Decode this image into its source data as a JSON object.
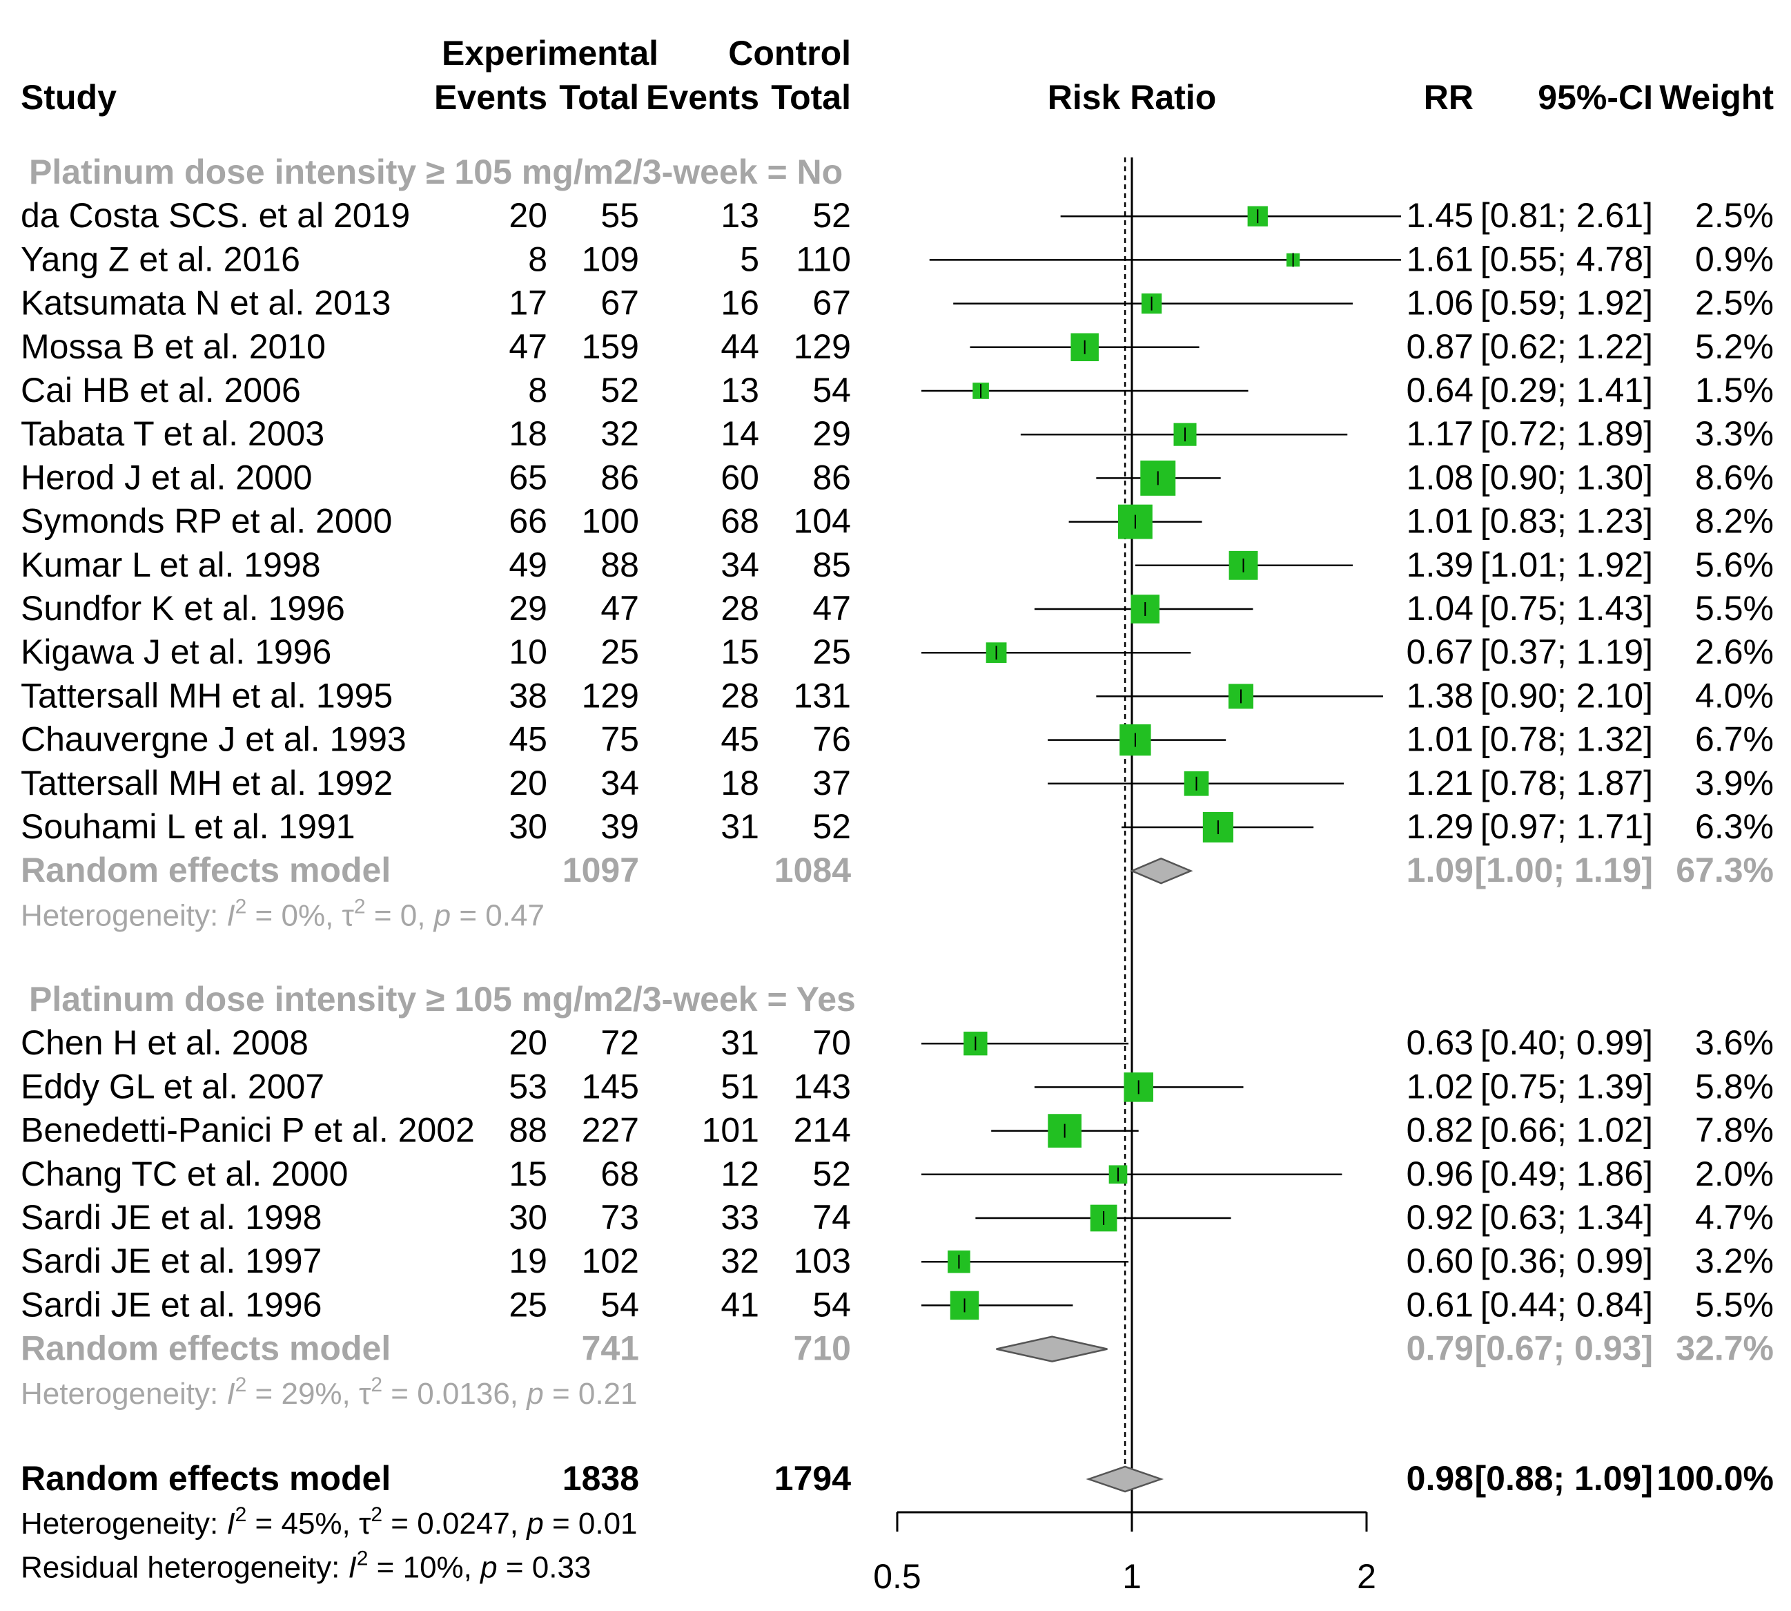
{
  "columns": {
    "study": "Study",
    "experimental": "Experimental",
    "control": "Control",
    "events": "Events",
    "total": "Total",
    "plot": "Risk Ratio",
    "rr": "RR",
    "ci": "95%-CI",
    "weight": "Weight"
  },
  "subgroups": [
    {
      "label": "Platinum dose intensity ≥ 105 mg/m2/3-week  = No",
      "studies": [
        {
          "study": "da Costa SCS. et al 2019",
          "exp_events": "20",
          "exp_total": "55",
          "ctrl_events": "13",
          "ctrl_total": "52",
          "rr": "1.45",
          "ci": "[0.81; 2.61]",
          "weight": "2.5%"
        },
        {
          "study": "Yang Z et al. 2016",
          "exp_events": "8",
          "exp_total": "109",
          "ctrl_events": "5",
          "ctrl_total": "110",
          "rr": "1.61",
          "ci": "[0.55; 4.78]",
          "weight": "0.9%"
        },
        {
          "study": "Katsumata N et al. 2013",
          "exp_events": "17",
          "exp_total": "67",
          "ctrl_events": "16",
          "ctrl_total": "67",
          "rr": "1.06",
          "ci": "[0.59; 1.92]",
          "weight": "2.5%"
        },
        {
          "study": "Mossa B et al. 2010",
          "exp_events": "47",
          "exp_total": "159",
          "ctrl_events": "44",
          "ctrl_total": "129",
          "rr": "0.87",
          "ci": "[0.62; 1.22]",
          "weight": "5.2%"
        },
        {
          "study": "Cai HB et al. 2006",
          "exp_events": "8",
          "exp_total": "52",
          "ctrl_events": "13",
          "ctrl_total": "54",
          "rr": "0.64",
          "ci": "[0.29; 1.41]",
          "weight": "1.5%"
        },
        {
          "study": "Tabata T et al. 2003",
          "exp_events": "18",
          "exp_total": "32",
          "ctrl_events": "14",
          "ctrl_total": "29",
          "rr": "1.17",
          "ci": "[0.72; 1.89]",
          "weight": "3.3%"
        },
        {
          "study": "Herod J et al. 2000",
          "exp_events": "65",
          "exp_total": "86",
          "ctrl_events": "60",
          "ctrl_total": "86",
          "rr": "1.08",
          "ci": "[0.90; 1.30]",
          "weight": "8.6%"
        },
        {
          "study": "Symonds RP et al. 2000",
          "exp_events": "66",
          "exp_total": "100",
          "ctrl_events": "68",
          "ctrl_total": "104",
          "rr": "1.01",
          "ci": "[0.83; 1.23]",
          "weight": "8.2%"
        },
        {
          "study": "Kumar L et al. 1998",
          "exp_events": "49",
          "exp_total": "88",
          "ctrl_events": "34",
          "ctrl_total": "85",
          "rr": "1.39",
          "ci": "[1.01; 1.92]",
          "weight": "5.6%"
        },
        {
          "study": "Sundfor K et al. 1996",
          "exp_events": "29",
          "exp_total": "47",
          "ctrl_events": "28",
          "ctrl_total": "47",
          "rr": "1.04",
          "ci": "[0.75; 1.43]",
          "weight": "5.5%"
        },
        {
          "study": "Kigawa J et al. 1996",
          "exp_events": "10",
          "exp_total": "25",
          "ctrl_events": "15",
          "ctrl_total": "25",
          "rr": "0.67",
          "ci": "[0.37; 1.19]",
          "weight": "2.6%"
        },
        {
          "study": "Tattersall MH et al. 1995",
          "exp_events": "38",
          "exp_total": "129",
          "ctrl_events": "28",
          "ctrl_total": "131",
          "rr": "1.38",
          "ci": "[0.90; 2.10]",
          "weight": "4.0%"
        },
        {
          "study": "Chauvergne J et al. 1993",
          "exp_events": "45",
          "exp_total": "75",
          "ctrl_events": "45",
          "ctrl_total": "76",
          "rr": "1.01",
          "ci": "[0.78; 1.32]",
          "weight": "6.7%"
        },
        {
          "study": "Tattersall MH et al. 1992",
          "exp_events": "20",
          "exp_total": "34",
          "ctrl_events": "18",
          "ctrl_total": "37",
          "rr": "1.21",
          "ci": "[0.78; 1.87]",
          "weight": "3.9%"
        },
        {
          "study": "Souhami L et al. 1991",
          "exp_events": "30",
          "exp_total": "39",
          "ctrl_events": "31",
          "ctrl_total": "52",
          "rr": "1.29",
          "ci": "[0.97; 1.71]",
          "weight": "6.3%"
        }
      ],
      "pooled": {
        "label": "Random effects model",
        "exp_total": "1097",
        "ctrl_total": "1084",
        "rr": "1.09",
        "ci": "[1.00; 1.19]",
        "weight": "67.3%"
      },
      "heterogeneity": {
        "prefix": "Heterogeneity: ",
        "i2": "0%",
        "tau2": "0",
        "p": "0.47"
      }
    },
    {
      "label": "Platinum dose intensity ≥ 105 mg/m2/3-week  = Yes",
      "studies": [
        {
          "study": "Chen H et al. 2008",
          "exp_events": "20",
          "exp_total": "72",
          "ctrl_events": "31",
          "ctrl_total": "70",
          "rr": "0.63",
          "ci": "[0.40; 0.99]",
          "weight": "3.6%"
        },
        {
          "study": "Eddy GL et al. 2007",
          "exp_events": "53",
          "exp_total": "145",
          "ctrl_events": "51",
          "ctrl_total": "143",
          "rr": "1.02",
          "ci": "[0.75; 1.39]",
          "weight": "5.8%"
        },
        {
          "study": "Benedetti-Panici P et al. 2002",
          "exp_events": "88",
          "exp_total": "227",
          "ctrl_events": "101",
          "ctrl_total": "214",
          "rr": "0.82",
          "ci": "[0.66; 1.02]",
          "weight": "7.8%"
        },
        {
          "study": "Chang TC et al. 2000",
          "exp_events": "15",
          "exp_total": "68",
          "ctrl_events": "12",
          "ctrl_total": "52",
          "rr": "0.96",
          "ci": "[0.49; 1.86]",
          "weight": "2.0%"
        },
        {
          "study": "Sardi JE et al. 1998",
          "exp_events": "30",
          "exp_total": "73",
          "ctrl_events": "33",
          "ctrl_total": "74",
          "rr": "0.92",
          "ci": "[0.63; 1.34]",
          "weight": "4.7%"
        },
        {
          "study": "Sardi JE et al. 1997",
          "exp_events": "19",
          "exp_total": "102",
          "ctrl_events": "32",
          "ctrl_total": "103",
          "rr": "0.60",
          "ci": "[0.36; 0.99]",
          "weight": "3.2%"
        },
        {
          "study": "Sardi JE et al. 1996",
          "exp_events": "25",
          "exp_total": "54",
          "ctrl_events": "41",
          "ctrl_total": "54",
          "rr": "0.61",
          "ci": "[0.44; 0.84]",
          "weight": "5.5%"
        }
      ],
      "pooled": {
        "label": "Random effects model",
        "exp_total": "741",
        "ctrl_total": "710",
        "rr": "0.79",
        "ci": "[0.67; 0.93]",
        "weight": "32.7%"
      },
      "heterogeneity": {
        "prefix": "Heterogeneity: ",
        "i2": "29%",
        "tau2": "0.0136",
        "p": "0.21"
      }
    }
  ],
  "overall": {
    "label": "Random effects model",
    "exp_total": "1838",
    "ctrl_total": "1794",
    "rr": "0.98",
    "ci": "[0.88; 1.09]",
    "weight": "100.0%",
    "heterogeneity": {
      "prefix": "Heterogeneity: ",
      "i2": "45%",
      "tau2": "0.0247",
      "p": "0.01"
    },
    "residual": {
      "prefix": "Residual heterogeneity: ",
      "i2": "10%",
      "p": "0.33"
    }
  },
  "colors": {
    "box": "#22c022",
    "diamond": "#b3b3b3",
    "subgroup_text": "#a6a6a6",
    "text": "#000000"
  },
  "chart_data": {
    "type": "forest",
    "scale": "log",
    "axis_ticks": [
      "0.5",
      "1",
      "2"
    ],
    "tick_values": [
      0.5,
      1,
      2
    ],
    "reference_line": 1,
    "xlim": [
      0.5,
      2
    ],
    "subgroups": [
      {
        "label": "No",
        "points": [
          {
            "rr": 1.45,
            "lo": 0.81,
            "hi": 2.61,
            "w": 2.5
          },
          {
            "rr": 1.61,
            "lo": 0.55,
            "hi": 4.78,
            "w": 0.9
          },
          {
            "rr": 1.06,
            "lo": 0.59,
            "hi": 1.92,
            "w": 2.5
          },
          {
            "rr": 0.87,
            "lo": 0.62,
            "hi": 1.22,
            "w": 5.2
          },
          {
            "rr": 0.64,
            "lo": 0.29,
            "hi": 1.41,
            "w": 1.5
          },
          {
            "rr": 1.17,
            "lo": 0.72,
            "hi": 1.89,
            "w": 3.3
          },
          {
            "rr": 1.08,
            "lo": 0.9,
            "hi": 1.3,
            "w": 8.6
          },
          {
            "rr": 1.01,
            "lo": 0.83,
            "hi": 1.23,
            "w": 8.2
          },
          {
            "rr": 1.39,
            "lo": 1.01,
            "hi": 1.92,
            "w": 5.6
          },
          {
            "rr": 1.04,
            "lo": 0.75,
            "hi": 1.43,
            "w": 5.5
          },
          {
            "rr": 0.67,
            "lo": 0.37,
            "hi": 1.19,
            "w": 2.6
          },
          {
            "rr": 1.38,
            "lo": 0.9,
            "hi": 2.1,
            "w": 4.0
          },
          {
            "rr": 1.01,
            "lo": 0.78,
            "hi": 1.32,
            "w": 6.7
          },
          {
            "rr": 1.21,
            "lo": 0.78,
            "hi": 1.87,
            "w": 3.9
          },
          {
            "rr": 1.29,
            "lo": 0.97,
            "hi": 1.71,
            "w": 6.3
          }
        ],
        "pooled": {
          "rr": 1.09,
          "lo": 1.0,
          "hi": 1.19
        }
      },
      {
        "label": "Yes",
        "points": [
          {
            "rr": 0.63,
            "lo": 0.4,
            "hi": 0.99,
            "w": 3.6
          },
          {
            "rr": 1.02,
            "lo": 0.75,
            "hi": 1.39,
            "w": 5.8
          },
          {
            "rr": 0.82,
            "lo": 0.66,
            "hi": 1.02,
            "w": 7.8
          },
          {
            "rr": 0.96,
            "lo": 0.49,
            "hi": 1.86,
            "w": 2.0
          },
          {
            "rr": 0.92,
            "lo": 0.63,
            "hi": 1.34,
            "w": 4.7
          },
          {
            "rr": 0.6,
            "lo": 0.36,
            "hi": 0.99,
            "w": 3.2
          },
          {
            "rr": 0.61,
            "lo": 0.44,
            "hi": 0.84,
            "w": 5.5
          }
        ],
        "pooled": {
          "rr": 0.79,
          "lo": 0.67,
          "hi": 0.93
        }
      }
    ],
    "overall": {
      "rr": 0.98,
      "lo": 0.88,
      "hi": 1.09
    }
  }
}
